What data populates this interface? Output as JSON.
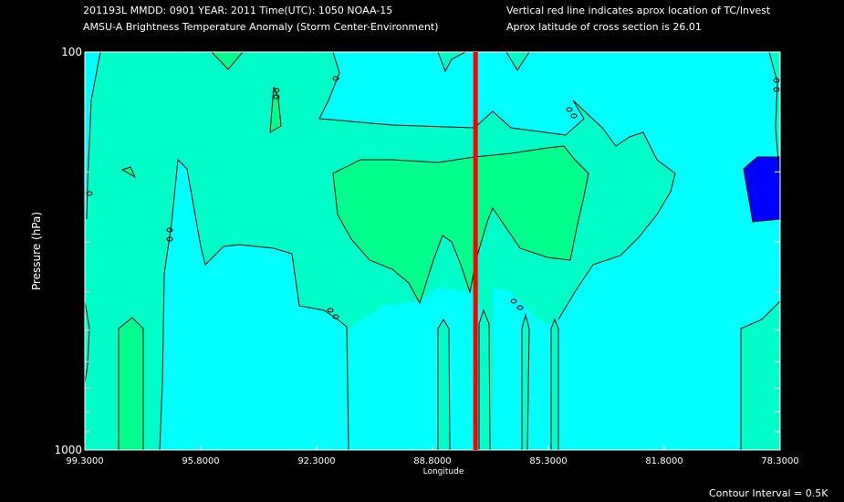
{
  "header": {
    "line1_left": "201193L  MMDD: 0901 YEAR: 2011 Time(UTC): 1050 NOAA-15",
    "line2_left": "AMSU-A Brightness Temperature Anomaly (Storm Center-Environment)",
    "line1_right": "Vertical red line indicates aprox location of TC/Invest",
    "line2_right": "Aprox latitude of cross section is 26.01"
  },
  "footer": {
    "contour_interval": "Contour Interval = 0.5K"
  },
  "colors": {
    "background": "#000000",
    "cyan": "#00ffff",
    "teal": "#00ffc8",
    "green": "#00ff8c",
    "blue": "#0000ff",
    "red_line": "#ff0000",
    "outline": "#000000"
  },
  "chart_data": {
    "type": "contour",
    "title": "AMSU-A Brightness Temperature Anomaly (Storm Center-Environment)",
    "xlabel": "Longitude",
    "ylabel": "Pressure (hPa)",
    "x_ticks": [
      "99.3000",
      "95.8000",
      "92.3000",
      "88.8000",
      "85.3000",
      "81.8000",
      "78.3000"
    ],
    "x_tick_values": [
      99.3,
      95.8,
      92.3,
      88.8,
      85.3,
      81.8,
      78.3
    ],
    "xlim": [
      99.3,
      78.3
    ],
    "y_ticks": [
      "100",
      "1000"
    ],
    "ylim": [
      100,
      1000
    ],
    "y_scale": "log",
    "tc_longitude": 87.5,
    "contour_interval_K": 0.5,
    "legend": "none",
    "grid": false
  }
}
